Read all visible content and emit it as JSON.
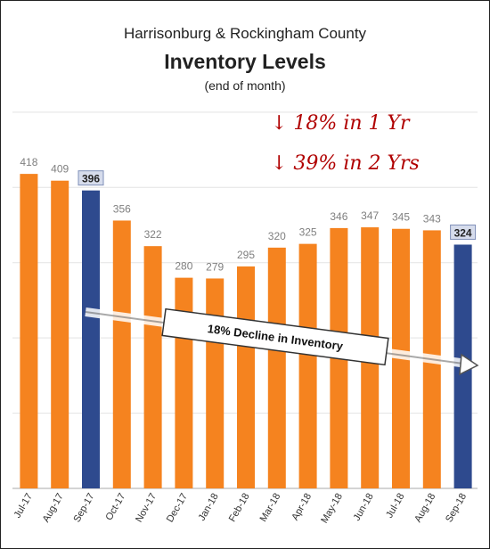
{
  "chart_data": {
    "type": "bar",
    "title": "Harrisonburg & Rockingham County",
    "subtitle": "Inventory Levels",
    "note": "(end of month)",
    "categories": [
      "Jul-17",
      "Aug-17",
      "Sep-17",
      "Oct-17",
      "Nov-17",
      "Dec-17",
      "Jan-18",
      "Feb-18",
      "Mar-18",
      "Apr-18",
      "May-18",
      "Jun-18",
      "Jul-18",
      "Aug-18",
      "Sep-18"
    ],
    "values": [
      418,
      409,
      396,
      356,
      322,
      280,
      279,
      295,
      320,
      325,
      346,
      347,
      345,
      343,
      324
    ],
    "highlighted": [
      "Sep-17",
      "Sep-18"
    ],
    "ylim": [
      0,
      500
    ],
    "grid": true,
    "xlabel": "",
    "ylabel": "",
    "colors": {
      "bar": "#F5831F",
      "highlight": "#2E4A8E",
      "label_box": "#D6DCEC"
    },
    "annotations": {
      "trend_label": "18% Decline in Inventory",
      "hand_note_1": "↓ 18% in 1 Yr",
      "hand_note_2": "↓ 39% in 2 Yrs"
    }
  }
}
